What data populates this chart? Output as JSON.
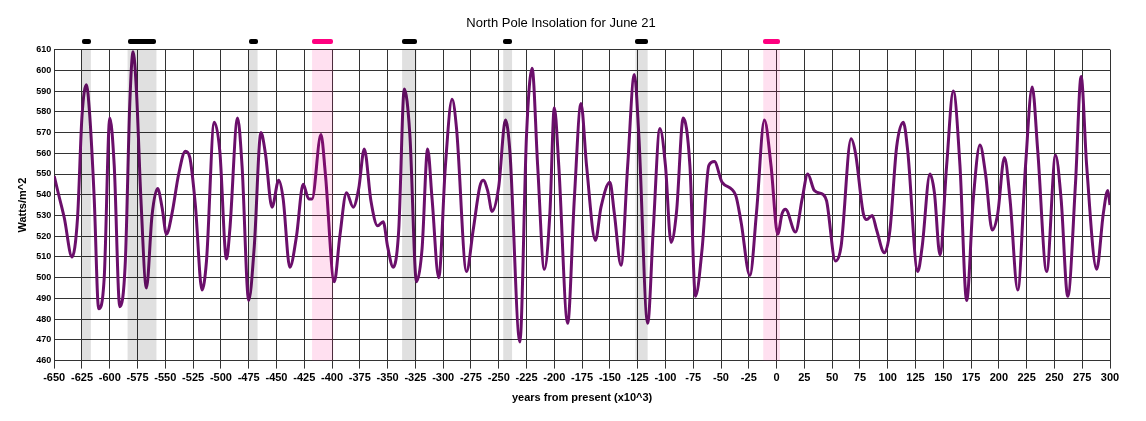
{
  "chart_data": {
    "type": "line",
    "title": "North Pole Insolation for June 21",
    "xlabel": "years from present (x10^3)",
    "ylabel": "Watts/m^2",
    "x": [
      -650,
      -646,
      -641,
      -634,
      -629,
      -625,
      -621,
      -618,
      -614,
      -610,
      -605,
      -600,
      -596,
      -591,
      -586,
      -582,
      -579,
      -576,
      -572,
      -567,
      -562,
      -557,
      -553,
      -549,
      -544,
      -538,
      -532,
      -528,
      -523,
      -517,
      -513,
      -506,
      -501,
      -495,
      -492,
      -485,
      -481,
      -475,
      -470,
      -464,
      -460,
      -454,
      -448,
      -444,
      -438,
      -432,
      -426,
      -421,
      -418,
      -410,
      -406,
      -398,
      -393,
      -387,
      -381,
      -376,
      -371,
      -365,
      -359,
      -354,
      -350,
      -345,
      -340,
      -335,
      -330,
      -324,
      -319,
      -314,
      -310,
      -304,
      -298,
      -292,
      -288,
      -279,
      -273,
      -267,
      -264,
      -260,
      -256,
      -250,
      -244,
      -240,
      -231,
      -225,
      -220,
      -215,
      -209,
      -204,
      -200,
      -196,
      -188,
      -182,
      -176,
      -171,
      -163,
      -158,
      -150,
      -146,
      -140,
      -134,
      -128,
      -124,
      -116,
      -111,
      -105,
      -100,
      -95,
      -90,
      -84,
      -78,
      -73,
      -67,
      -61,
      -56,
      -49,
      -37,
      -32,
      -24,
      -18,
      -11,
      -5,
      1,
      5,
      8,
      17,
      23,
      28,
      34,
      42,
      45,
      53,
      58,
      67,
      71,
      78,
      81,
      86,
      90,
      97,
      102,
      108,
      114,
      118,
      127,
      131,
      138,
      142,
      147,
      153,
      159,
      165,
      171,
      177,
      183,
      188,
      194,
      199,
      205,
      210,
      217,
      224,
      230,
      235,
      243,
      251,
      256,
      262,
      269,
      274,
      279,
      288,
      294,
      298,
      300
    ],
    "series": [
      {
        "color": "#6b0f6b",
        "values": [
          549,
          540,
          529,
          510,
          529,
          578,
          593,
          578,
          538,
          485,
          500,
          577,
          554,
          486,
          508,
          584,
          609,
          590,
          538,
          495,
          530,
          543,
          534,
          521,
          531,
          550,
          561,
          558,
          535,
          494,
          508,
          575,
          561,
          509,
          523,
          577,
          554,
          489,
          515,
          570,
          560,
          534,
          547,
          538,
          505,
          520,
          545,
          538,
          538,
          569,
          550,
          498,
          520,
          541,
          534,
          543,
          562,
          537,
          525,
          527,
          515,
          505,
          523,
          591,
          569,
          498,
          514,
          562,
          538,
          500,
          554,
          586,
          572,
          503,
          523,
          544,
          547,
          542,
          532,
          544,
          576,
          561,
          469,
          569,
          601,
          554,
          504,
          531,
          582,
          554,
          478,
          538,
          584,
          554,
          518,
          534,
          546,
          531,
          506,
          554,
          598,
          569,
          478,
          523,
          572,
          554,
          517,
          532,
          577,
          554,
          491,
          514,
          554,
          556,
          546,
          540,
          527,
          501,
          532,
          576,
          554,
          521,
          531,
          533,
          522,
          538,
          550,
          542,
          540,
          537,
          508,
          515,
          567,
          560,
          531,
          528,
          530,
          523,
          512,
          523,
          563,
          575,
          561,
          503,
          515,
          550,
          541,
          511,
          554,
          590,
          554,
          489,
          538,
          564,
          550,
          523,
          531,
          558,
          538,
          494,
          554,
          592,
          561,
          503,
          559,
          538,
          491,
          546,
          597,
          554,
          504,
          531,
          542,
          535
        ]
      }
    ],
    "xlim": [
      -650,
      300
    ],
    "xticks": [
      -650,
      -625,
      -600,
      -575,
      -550,
      -525,
      -500,
      -475,
      -450,
      -425,
      -400,
      -375,
      -350,
      -325,
      -300,
      -275,
      -250,
      -225,
      -200,
      -175,
      -150,
      -125,
      -100,
      -75,
      -50,
      -25,
      0,
      25,
      50,
      75,
      100,
      125,
      150,
      175,
      200,
      225,
      250,
      275,
      300
    ],
    "ylim": [
      460,
      610
    ],
    "yticks": [
      460,
      470,
      480,
      490,
      500,
      510,
      520,
      530,
      540,
      550,
      560,
      570,
      580,
      590,
      600,
      610
    ],
    "grid": true,
    "bands": [
      {
        "axis": "x",
        "from": -625,
        "to": -617,
        "color": "#000000"
      },
      {
        "axis": "x",
        "from": -584,
        "to": -558,
        "color": "#000000"
      },
      {
        "axis": "x",
        "from": -475,
        "to": -467,
        "color": "#000000"
      },
      {
        "axis": "x",
        "from": -418,
        "to": -399,
        "color": "#ff0080"
      },
      {
        "axis": "x",
        "from": -337,
        "to": -324,
        "color": "#000000"
      },
      {
        "axis": "x",
        "from": -246,
        "to": -238,
        "color": "#000000"
      },
      {
        "axis": "x",
        "from": -127,
        "to": -116,
        "color": "#000000"
      },
      {
        "axis": "x",
        "from": -12,
        "to": 3,
        "color": "#ff0080"
      }
    ]
  }
}
